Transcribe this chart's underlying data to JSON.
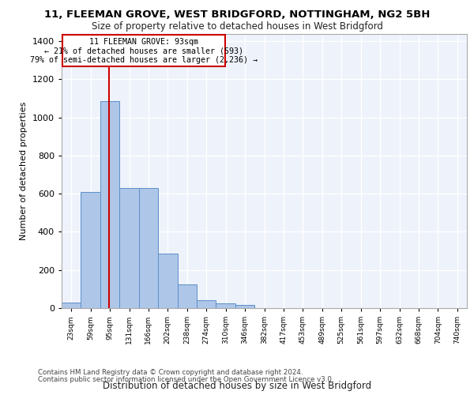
{
  "title_line1": "11, FLEEMAN GROVE, WEST BRIDGFORD, NOTTINGHAM, NG2 5BH",
  "title_line2": "Size of property relative to detached houses in West Bridgford",
  "xlabel": "Distribution of detached houses by size in West Bridgford",
  "ylabel": "Number of detached properties",
  "footnote1": "Contains HM Land Registry data © Crown copyright and database right 2024.",
  "footnote2": "Contains public sector information licensed under the Open Government Licence v3.0.",
  "bar_color": "#aec6e8",
  "bar_edge_color": "#5b8fc9",
  "background_color": "#eef2fb",
  "grid_color": "#ffffff",
  "annotation_box_color": "#cc0000",
  "annotation_text_line1": "11 FLEEMAN GROVE: 93sqm",
  "annotation_text_line2": "← 21% of detached houses are smaller (593)",
  "annotation_text_line3": "79% of semi-detached houses are larger (2,236) →",
  "vline_x": 93,
  "vline_color": "#cc0000",
  "categories": [
    "23sqm",
    "59sqm",
    "95sqm",
    "131sqm",
    "166sqm",
    "202sqm",
    "238sqm",
    "274sqm",
    "310sqm",
    "346sqm",
    "382sqm",
    "417sqm",
    "453sqm",
    "489sqm",
    "525sqm",
    "561sqm",
    "597sqm",
    "632sqm",
    "668sqm",
    "704sqm",
    "740sqm"
  ],
  "bin_edges": [
    5,
    41,
    77,
    113,
    149,
    185,
    221,
    257,
    293,
    329,
    365,
    401,
    437,
    473,
    509,
    545,
    581,
    617,
    653,
    689,
    725,
    761
  ],
  "values": [
    30,
    610,
    1085,
    630,
    630,
    285,
    125,
    42,
    25,
    15,
    0,
    0,
    0,
    0,
    0,
    0,
    0,
    0,
    0,
    0,
    0
  ],
  "ylim": [
    0,
    1440
  ],
  "yticks": [
    0,
    200,
    400,
    600,
    800,
    1000,
    1200,
    1400
  ]
}
